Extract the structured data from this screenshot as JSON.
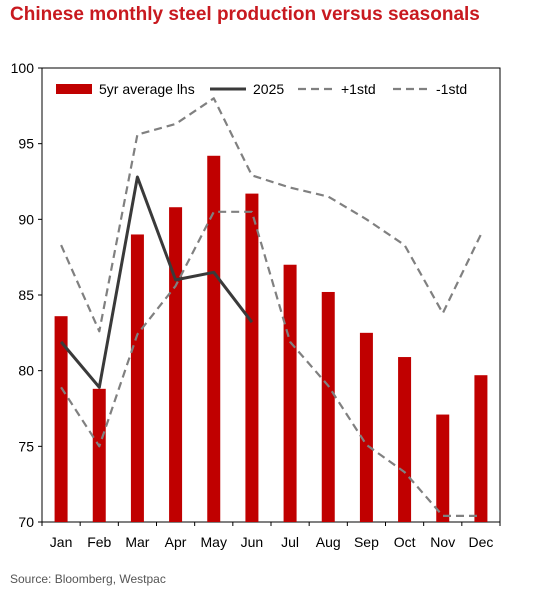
{
  "title": "Chinese monthly steel production versus seasonals",
  "source": "Source: Bloomberg, Westpac",
  "colors": {
    "title": "#c8191f",
    "bars": "#c00000",
    "line2025": "#3a3a3a",
    "std": "#808080"
  },
  "chart_data": {
    "type": "bar",
    "title": "Chinese monthly steel production versus seasonals",
    "categories": [
      "Jan",
      "Feb",
      "Mar",
      "Apr",
      "May",
      "Jun",
      "Jul",
      "Aug",
      "Sep",
      "Oct",
      "Nov",
      "Dec"
    ],
    "ylim": [
      70,
      100
    ],
    "yticks": [
      70,
      75,
      80,
      85,
      90,
      95,
      100
    ],
    "grid": false,
    "legend_position": "top",
    "series": [
      {
        "name": "5yr average lhs",
        "type": "bar",
        "values": [
          83.6,
          78.8,
          89.0,
          90.8,
          94.2,
          91.7,
          87.0,
          85.2,
          82.5,
          80.9,
          77.1,
          79.7
        ]
      },
      {
        "name": "2025",
        "type": "line",
        "style": "solid",
        "values": [
          81.9,
          78.9,
          92.8,
          86.0,
          86.5,
          83.2,
          null,
          null,
          null,
          null,
          null,
          null
        ]
      },
      {
        "name": "+1std",
        "type": "line",
        "style": "dashed",
        "values": [
          88.3,
          82.6,
          95.6,
          96.3,
          98.0,
          92.9,
          92.1,
          91.5,
          90.0,
          88.3,
          83.8,
          89.0
        ]
      },
      {
        "name": "-1std",
        "type": "line",
        "style": "dashed",
        "values": [
          78.9,
          75.0,
          82.4,
          85.6,
          90.5,
          90.5,
          81.9,
          79.0,
          75.1,
          73.3,
          70.4,
          70.4
        ]
      }
    ]
  }
}
